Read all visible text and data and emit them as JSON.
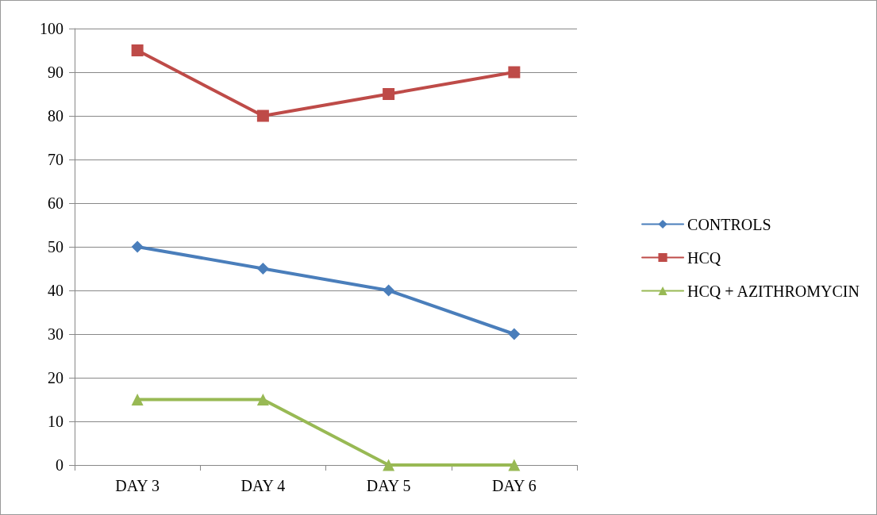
{
  "chart_data": {
    "type": "line",
    "categories": [
      "DAY 3",
      "DAY 4",
      "DAY 5",
      "DAY 6"
    ],
    "series": [
      {
        "name": "CONTROLS",
        "color": "#4a7ebb",
        "marker": "diamond",
        "values": [
          50,
          45,
          40,
          30
        ]
      },
      {
        "name": "HCQ",
        "color": "#be4b48",
        "marker": "square",
        "values": [
          95,
          80,
          85,
          90
        ]
      },
      {
        "name": "HCQ + AZITHROMYCIN",
        "color": "#98b954",
        "marker": "triangle",
        "values": [
          15,
          15,
          0,
          0
        ]
      }
    ],
    "ylim": [
      0,
      100
    ],
    "yticks": [
      0,
      10,
      20,
      30,
      40,
      50,
      60,
      70,
      80,
      90,
      100
    ],
    "grid": "y",
    "legend": "right",
    "line_style": "solid"
  }
}
